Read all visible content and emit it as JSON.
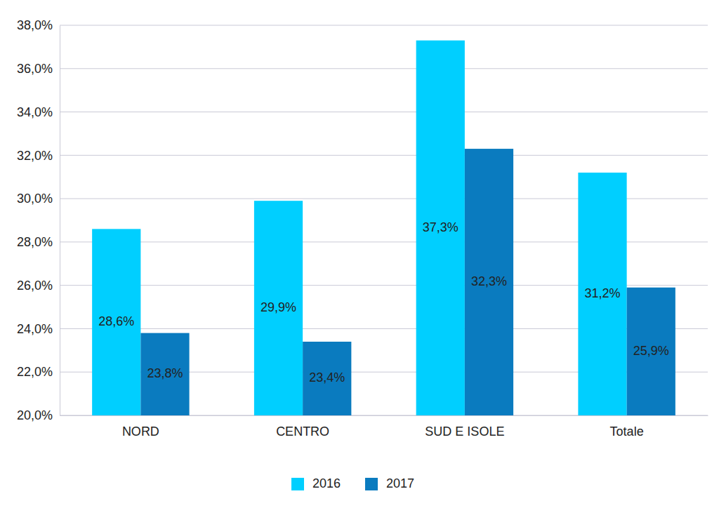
{
  "chart_data": {
    "type": "bar",
    "categories": [
      "NORD",
      "CENTRO",
      "SUD E ISOLE",
      "Totale"
    ],
    "series": [
      {
        "name": "2016",
        "color": "#00cfff",
        "values": [
          28.6,
          29.9,
          37.3,
          31.2
        ],
        "value_labels": [
          "28,6%",
          "29,9%",
          "37,3%",
          "31,2%"
        ]
      },
      {
        "name": "2017",
        "color": "#0a7bbf",
        "values": [
          23.8,
          23.4,
          32.3,
          25.9
        ],
        "value_labels": [
          "23,8%",
          "23,4%",
          "32,3%",
          "25,9%"
        ]
      }
    ],
    "ylim": [
      20,
      38
    ],
    "yticks": [
      {
        "value": 20,
        "label": "20,0%"
      },
      {
        "value": 22,
        "label": "22,0%"
      },
      {
        "value": 24,
        "label": "24,0%"
      },
      {
        "value": 26,
        "label": "26,0%"
      },
      {
        "value": 28,
        "label": "28,0%"
      },
      {
        "value": 30,
        "label": "30,0%"
      },
      {
        "value": 32,
        "label": "32,0%"
      },
      {
        "value": 34,
        "label": "34,0%"
      },
      {
        "value": 36,
        "label": "36,0%"
      },
      {
        "value": 38,
        "label": "38,0%"
      }
    ],
    "grid": true,
    "data_labels": true,
    "legend": "bottom"
  }
}
